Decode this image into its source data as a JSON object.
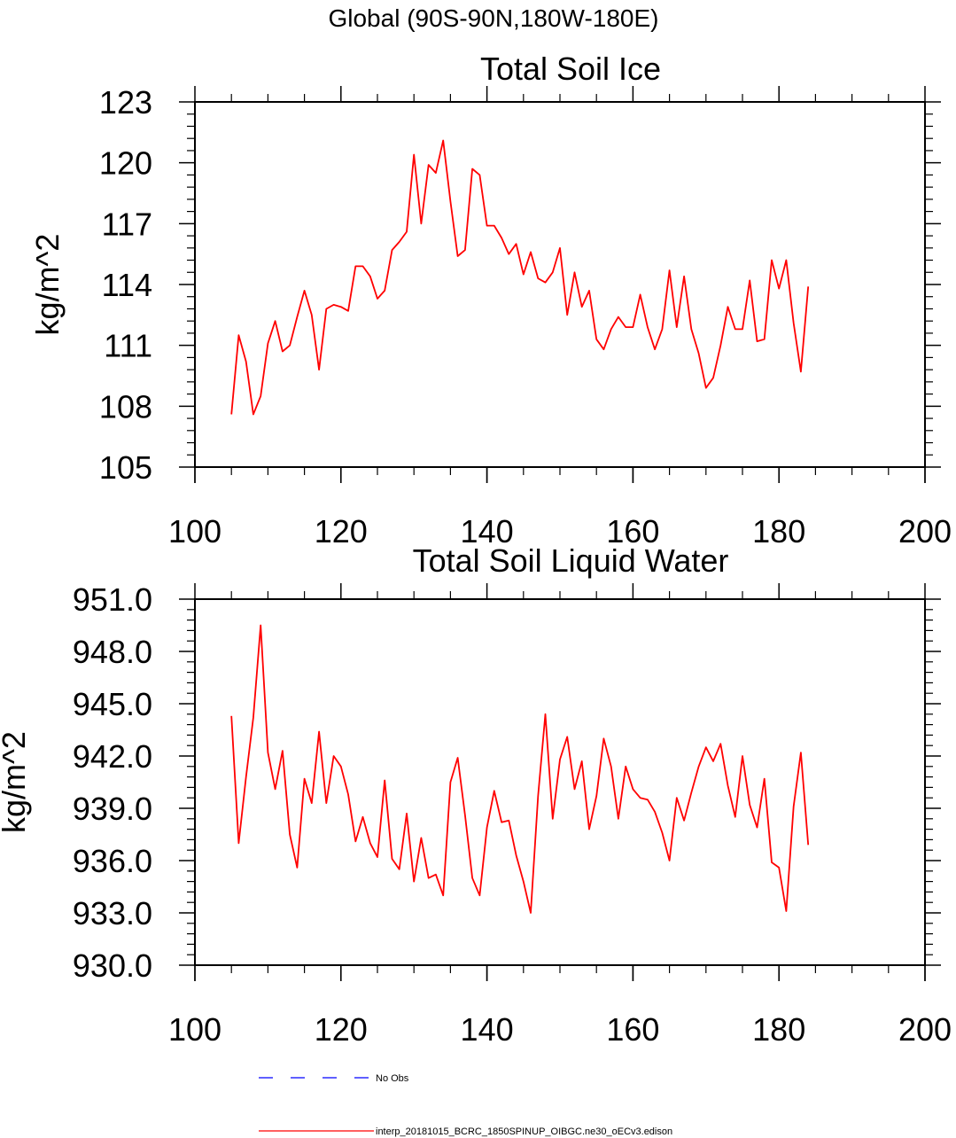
{
  "figure": {
    "suptitle": "Global (90S-90N,180W-180E)"
  },
  "chart_data": [
    {
      "type": "line",
      "title": "Total Soil Ice",
      "xlabel": "",
      "ylabel": "kg/m^2",
      "xlim": [
        100,
        200
      ],
      "ylim": [
        105,
        123
      ],
      "xticks": [
        100,
        120,
        140,
        160,
        180,
        200
      ],
      "xtick_labels": [
        "100",
        "120",
        "140",
        "160",
        "180",
        "200"
      ],
      "yticks": [
        105,
        108,
        111,
        114,
        117,
        120,
        123
      ],
      "ytick_labels": [
        "105",
        "108",
        "111",
        "114",
        "117",
        "120",
        "123"
      ],
      "grid": false,
      "series": [
        {
          "name": "interp_20181015_BCRC_1850SPINUP_OIBGC.ne30_oECv3.edison",
          "color": "#ff0000",
          "x": [
            105,
            106,
            107,
            108,
            109,
            110,
            111,
            112,
            113,
            114,
            115,
            116,
            117,
            118,
            119,
            120,
            121,
            122,
            123,
            124,
            125,
            126,
            127,
            128,
            129,
            130,
            131,
            132,
            133,
            134,
            135,
            136,
            137,
            138,
            139,
            140,
            141,
            142,
            143,
            144,
            145,
            146,
            147,
            148,
            149,
            150,
            151,
            152,
            153,
            154,
            155,
            156,
            157,
            158,
            159,
            160,
            161,
            162,
            163,
            164,
            165,
            166,
            167,
            168,
            169,
            170,
            171,
            172,
            173,
            174,
            175,
            176,
            177,
            178,
            179,
            180,
            181,
            182,
            183,
            184
          ],
          "y": [
            107.6,
            111.5,
            110.2,
            107.6,
            108.5,
            111.1,
            112.2,
            110.7,
            111.0,
            112.4,
            113.7,
            112.5,
            109.8,
            112.8,
            113.0,
            112.9,
            112.7,
            114.9,
            114.9,
            114.4,
            113.3,
            113.7,
            115.7,
            116.1,
            116.6,
            120.4,
            117.0,
            119.9,
            119.5,
            121.1,
            118.1,
            115.4,
            115.7,
            119.7,
            119.4,
            116.9,
            116.9,
            116.3,
            115.5,
            116.0,
            114.5,
            115.6,
            114.3,
            114.1,
            114.6,
            115.8,
            112.5,
            114.6,
            112.9,
            113.7,
            111.3,
            110.8,
            111.8,
            112.4,
            111.9,
            111.9,
            113.5,
            111.9,
            110.8,
            111.8,
            114.7,
            111.9,
            114.4,
            111.8,
            110.6,
            108.9,
            109.4,
            111.0,
            112.9,
            111.8,
            111.8,
            114.2,
            111.2,
            111.3,
            115.2,
            113.8,
            115.2,
            112.1,
            109.7,
            113.9
          ]
        }
      ]
    },
    {
      "type": "line",
      "title": "Total Soil Liquid Water",
      "xlabel": "",
      "ylabel": "kg/m^2",
      "xlim": [
        100,
        200
      ],
      "ylim": [
        930,
        951
      ],
      "xticks": [
        100,
        120,
        140,
        160,
        180,
        200
      ],
      "xtick_labels": [
        "100",
        "120",
        "140",
        "160",
        "180",
        "200"
      ],
      "yticks": [
        930,
        933,
        936,
        939,
        942,
        945,
        948,
        951
      ],
      "ytick_labels": [
        "930.0",
        "933.0",
        "936.0",
        "939.0",
        "942.0",
        "945.0",
        "948.0",
        "951.0"
      ],
      "grid": false,
      "series": [
        {
          "name": "interp_20181015_BCRC_1850SPINUP_OIBGC.ne30_oECv3.edison",
          "color": "#ff0000",
          "x": [
            105,
            106,
            107,
            108,
            109,
            110,
            111,
            112,
            113,
            114,
            115,
            116,
            117,
            118,
            119,
            120,
            121,
            122,
            123,
            124,
            125,
            126,
            127,
            128,
            129,
            130,
            131,
            132,
            133,
            134,
            135,
            136,
            137,
            138,
            139,
            140,
            141,
            142,
            143,
            144,
            145,
            146,
            147,
            148,
            149,
            150,
            151,
            152,
            153,
            154,
            155,
            156,
            157,
            158,
            159,
            160,
            161,
            162,
            163,
            164,
            165,
            166,
            167,
            168,
            169,
            170,
            171,
            172,
            173,
            174,
            175,
            176,
            177,
            178,
            179,
            180,
            181,
            182,
            183,
            184
          ],
          "y": [
            944.3,
            937.0,
            940.8,
            944.2,
            949.5,
            942.2,
            940.1,
            942.3,
            937.5,
            935.6,
            940.7,
            939.3,
            943.4,
            939.3,
            942.0,
            941.4,
            939.8,
            937.1,
            938.5,
            937.0,
            936.2,
            940.6,
            936.1,
            935.5,
            938.7,
            934.8,
            937.3,
            935.0,
            935.2,
            934.0,
            940.5,
            941.9,
            938.6,
            935.0,
            934.0,
            937.9,
            940.0,
            938.2,
            938.3,
            936.3,
            934.8,
            933.0,
            939.7,
            944.4,
            938.4,
            941.8,
            943.1,
            940.1,
            941.7,
            937.8,
            939.7,
            943.0,
            941.4,
            938.4,
            941.4,
            940.1,
            939.6,
            939.5,
            938.8,
            937.6,
            936.0,
            939.6,
            938.3,
            939.9,
            941.4,
            942.5,
            941.7,
            942.7,
            940.3,
            938.5,
            942.0,
            939.2,
            937.9,
            940.7,
            935.9,
            935.6,
            933.1,
            939.1,
            942.2,
            936.9
          ]
        }
      ]
    }
  ],
  "legend": {
    "entries": [
      {
        "label": "No Obs",
        "color": "#0000ff",
        "style": "dashed"
      },
      {
        "label": "interp_20181015_BCRC_1850SPINUP_OIBGC.ne30_oECv3.edison",
        "color": "#ff0000",
        "style": "solid"
      }
    ]
  }
}
